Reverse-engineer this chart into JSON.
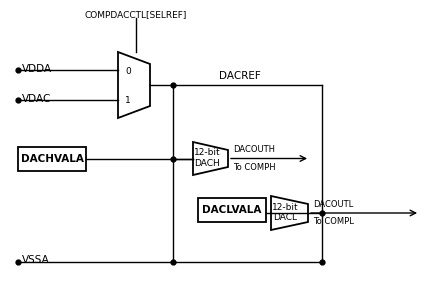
{
  "bg_color": "#ffffff",
  "mux_label_0": "0",
  "mux_label_1": "1",
  "vdda_label": "VDDA",
  "vdac_label": "VDAC",
  "vssa_label": "VSSA",
  "compdacctl_label": "COMPDACCTL[SELREF]",
  "dacref_label": "DACREF",
  "dachvala_label": "DACHVALA",
  "dach_box_label1": "12-bit",
  "dach_box_label2": "DACH",
  "dacouth_label": "DACOUTH",
  "to_comph_label": "To COMPH",
  "daclvala_label": "DACLVALA",
  "dacl_box_label1": "12-bit",
  "dacl_box_label2": "DACL",
  "dacoutl_label": "DACOUTL",
  "to_compl_label": "To COMPL"
}
